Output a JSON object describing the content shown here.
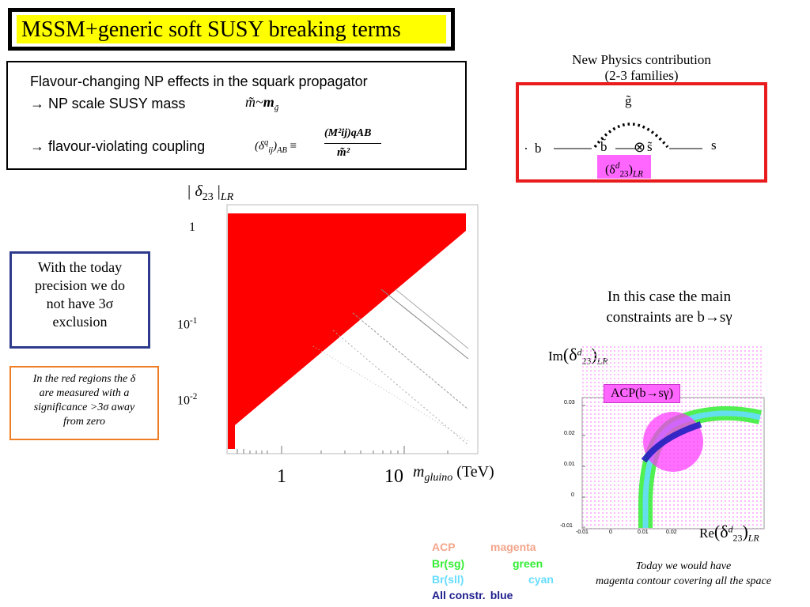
{
  "title": "MSSM+generic soft SUSY breaking terms",
  "flavour_box": {
    "line1": "Flavour-changing NP effects in the squark propagator",
    "line2": "→ NP scale SUSY mass",
    "line3": "→ flavour-violating coupling",
    "formula1_lhs": "m̃",
    "formula1_rel": "~",
    "formula1_rhs": "m",
    "formula1_sub": "g̃",
    "formula2_lhs": "(δ",
    "formula2_sup": "q",
    "formula2_sub": "ij",
    "formula2_after": ")",
    "formula2_ab": "AB",
    "formula2_eq": "≡",
    "formula2_num": "(M²ij)qAB",
    "formula2_den": "m̃²"
  },
  "diagram": {
    "heading_line1": "New Physics contribution",
    "heading_line2": "(2-3 families)",
    "gluino_label": "g̃",
    "b_label": "b",
    "b_tilde": "b̃",
    "s_tilde": "s̃",
    "s_label": "s",
    "cross": "⊗",
    "delta_label": "(δ",
    "delta_sup": "d",
    "delta_sub": "23",
    "delta_close": ")",
    "delta_lr": "LR",
    "highlight_color": "#ff66ff",
    "border_color": "#e81c1c"
  },
  "left_plot": {
    "ylabel_pre": "| δ",
    "ylabel_sub": "23",
    "ylabel_post": " |",
    "ylabel_lr": "LR",
    "y_ticks": [
      {
        "label": "1",
        "sup": ""
      },
      {
        "label": "10",
        "sup": "-1"
      },
      {
        "label": "10",
        "sup": "-2"
      }
    ],
    "x_ticks": [
      "1",
      "10"
    ],
    "xlabel_m": "m",
    "xlabel_sub": "gluino",
    "xlabel_unit": "(TeV)",
    "fill_color": "#ff0000"
  },
  "blue_note": {
    "line1": "With the today",
    "line2": "precision we do",
    "line3": "not have 3σ",
    "line4": "exclusion"
  },
  "orange_note": {
    "line1": "In the red regions the δ",
    "line2": "are measured with a",
    "line3": "significance >3σ  away",
    "line4": "from zero"
  },
  "right_text": {
    "line1": "In this case the main",
    "line2": "constraints are b→sγ"
  },
  "right_plot": {
    "ylabel_pre": "Im",
    "ylabel_delta": "(δ",
    "ylabel_sup": "d",
    "ylabel_sub": "23",
    "ylabel_close": ")",
    "ylabel_lr": "LR",
    "xlabel_pre": "Re",
    "acp_label": "ACP(b→sγ)",
    "y_ticks": [
      "0.03",
      "0.02",
      "0.01",
      "0",
      "-0.01"
    ],
    "x_ticks": [
      "-0.01",
      "0",
      "0.01",
      "0.02"
    ]
  },
  "legend": [
    {
      "name": "ACP",
      "color_name": "magenta",
      "color": "#f4a58c"
    },
    {
      "name": "Br(sg)",
      "color_name": "green",
      "color": "#33ee33"
    },
    {
      "name": "Br(sll)",
      "color_name": "cyan",
      "color": "#66ddff"
    },
    {
      "name": "All constr.",
      "color_name": "blue",
      "color": "#1f1f8f"
    }
  ],
  "bottom_note": {
    "line1": "Today we would have",
    "line2": "magenta contour covering all the space"
  }
}
